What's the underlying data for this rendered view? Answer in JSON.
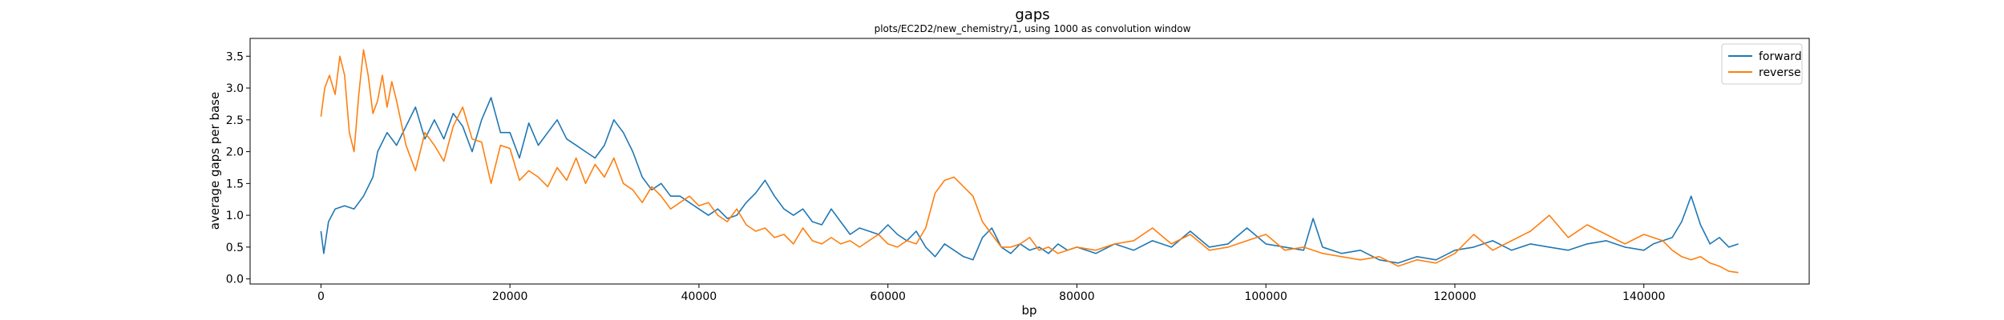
{
  "chart_data": {
    "type": "line",
    "title": "gaps",
    "subtitle": "plots/EC2D2/new_chemistry/1, using 1000 as convolution window",
    "xlabel": "bp",
    "ylabel": "average gaps per base",
    "xlim": [
      -7500,
      157500
    ],
    "ylim": [
      -0.08,
      3.78
    ],
    "x_ticks": [
      0,
      20000,
      40000,
      60000,
      80000,
      100000,
      120000,
      140000
    ],
    "x_tick_labels": [
      "0",
      "20000",
      "40000",
      "60000",
      "80000",
      "100000",
      "120000",
      "140000"
    ],
    "y_ticks": [
      0.0,
      0.5,
      1.0,
      1.5,
      2.0,
      2.5,
      3.0,
      3.5
    ],
    "y_tick_labels": [
      "0.0",
      "0.5",
      "1.0",
      "1.5",
      "2.0",
      "2.5",
      "3.0",
      "3.5"
    ],
    "grid": false,
    "legend_position": "top-right",
    "series": [
      {
        "name": "forward",
        "color": "#1f77b4",
        "points": [
          [
            0,
            0.75
          ],
          [
            300,
            0.4
          ],
          [
            800,
            0.9
          ],
          [
            1500,
            1.1
          ],
          [
            2500,
            1.15
          ],
          [
            3500,
            1.1
          ],
          [
            4500,
            1.3
          ],
          [
            5500,
            1.6
          ],
          [
            6000,
            2.0
          ],
          [
            7000,
            2.3
          ],
          [
            8000,
            2.1
          ],
          [
            9000,
            2.4
          ],
          [
            10000,
            2.7
          ],
          [
            11000,
            2.2
          ],
          [
            12000,
            2.5
          ],
          [
            13000,
            2.2
          ],
          [
            14000,
            2.6
          ],
          [
            15000,
            2.4
          ],
          [
            16000,
            2.0
          ],
          [
            17000,
            2.5
          ],
          [
            18000,
            2.85
          ],
          [
            19000,
            2.3
          ],
          [
            20000,
            2.3
          ],
          [
            21000,
            1.9
          ],
          [
            22000,
            2.45
          ],
          [
            23000,
            2.1
          ],
          [
            24000,
            2.3
          ],
          [
            25000,
            2.5
          ],
          [
            26000,
            2.2
          ],
          [
            27000,
            2.1
          ],
          [
            28000,
            2.0
          ],
          [
            29000,
            1.9
          ],
          [
            30000,
            2.1
          ],
          [
            31000,
            2.5
          ],
          [
            32000,
            2.3
          ],
          [
            33000,
            2.0
          ],
          [
            34000,
            1.6
          ],
          [
            35000,
            1.4
          ],
          [
            36000,
            1.5
          ],
          [
            37000,
            1.3
          ],
          [
            38000,
            1.3
          ],
          [
            39000,
            1.2
          ],
          [
            40000,
            1.1
          ],
          [
            41000,
            1.0
          ],
          [
            42000,
            1.1
          ],
          [
            43000,
            0.95
          ],
          [
            44000,
            1.0
          ],
          [
            45000,
            1.2
          ],
          [
            46000,
            1.35
          ],
          [
            47000,
            1.55
          ],
          [
            48000,
            1.3
          ],
          [
            49000,
            1.1
          ],
          [
            50000,
            1.0
          ],
          [
            51000,
            1.1
          ],
          [
            52000,
            0.9
          ],
          [
            53000,
            0.85
          ],
          [
            54000,
            1.1
          ],
          [
            55000,
            0.9
          ],
          [
            56000,
            0.7
          ],
          [
            57000,
            0.8
          ],
          [
            58000,
            0.75
          ],
          [
            59000,
            0.7
          ],
          [
            60000,
            0.85
          ],
          [
            61000,
            0.7
          ],
          [
            62000,
            0.6
          ],
          [
            63000,
            0.75
          ],
          [
            64000,
            0.5
          ],
          [
            65000,
            0.35
          ],
          [
            66000,
            0.55
          ],
          [
            67000,
            0.45
          ],
          [
            68000,
            0.35
          ],
          [
            69000,
            0.3
          ],
          [
            70000,
            0.65
          ],
          [
            71000,
            0.8
          ],
          [
            72000,
            0.5
          ],
          [
            73000,
            0.4
          ],
          [
            74000,
            0.55
          ],
          [
            75000,
            0.45
          ],
          [
            76000,
            0.5
          ],
          [
            77000,
            0.4
          ],
          [
            78000,
            0.55
          ],
          [
            79000,
            0.45
          ],
          [
            80000,
            0.5
          ],
          [
            82000,
            0.4
          ],
          [
            84000,
            0.55
          ],
          [
            86000,
            0.45
          ],
          [
            88000,
            0.6
          ],
          [
            90000,
            0.5
          ],
          [
            92000,
            0.75
          ],
          [
            94000,
            0.5
          ],
          [
            96000,
            0.55
          ],
          [
            98000,
            0.8
          ],
          [
            100000,
            0.55
          ],
          [
            102000,
            0.5
          ],
          [
            104000,
            0.45
          ],
          [
            105000,
            0.95
          ],
          [
            106000,
            0.5
          ],
          [
            108000,
            0.4
          ],
          [
            110000,
            0.45
          ],
          [
            112000,
            0.3
          ],
          [
            114000,
            0.25
          ],
          [
            116000,
            0.35
          ],
          [
            118000,
            0.3
          ],
          [
            120000,
            0.45
          ],
          [
            122000,
            0.5
          ],
          [
            124000,
            0.6
          ],
          [
            126000,
            0.45
          ],
          [
            128000,
            0.55
          ],
          [
            130000,
            0.5
          ],
          [
            132000,
            0.45
          ],
          [
            134000,
            0.55
          ],
          [
            136000,
            0.6
          ],
          [
            138000,
            0.5
          ],
          [
            140000,
            0.45
          ],
          [
            141000,
            0.55
          ],
          [
            142000,
            0.6
          ],
          [
            143000,
            0.65
          ],
          [
            144000,
            0.9
          ],
          [
            145000,
            1.3
          ],
          [
            146000,
            0.85
          ],
          [
            147000,
            0.55
          ],
          [
            148000,
            0.65
          ],
          [
            149000,
            0.5
          ],
          [
            150000,
            0.55
          ]
        ]
      },
      {
        "name": "reverse",
        "color": "#ff7f0e",
        "points": [
          [
            0,
            2.55
          ],
          [
            400,
            3.0
          ],
          [
            900,
            3.2
          ],
          [
            1500,
            2.9
          ],
          [
            2000,
            3.5
          ],
          [
            2500,
            3.2
          ],
          [
            3000,
            2.3
          ],
          [
            3500,
            2.0
          ],
          [
            4000,
            2.9
          ],
          [
            4500,
            3.6
          ],
          [
            5000,
            3.2
          ],
          [
            5500,
            2.6
          ],
          [
            6000,
            2.8
          ],
          [
            6500,
            3.2
          ],
          [
            7000,
            2.7
          ],
          [
            7500,
            3.1
          ],
          [
            8000,
            2.8
          ],
          [
            9000,
            2.1
          ],
          [
            10000,
            1.7
          ],
          [
            11000,
            2.3
          ],
          [
            12000,
            2.1
          ],
          [
            13000,
            1.85
          ],
          [
            14000,
            2.4
          ],
          [
            15000,
            2.7
          ],
          [
            15500,
            2.45
          ],
          [
            16000,
            2.2
          ],
          [
            17000,
            2.15
          ],
          [
            18000,
            1.5
          ],
          [
            19000,
            2.1
          ],
          [
            20000,
            2.05
          ],
          [
            21000,
            1.55
          ],
          [
            22000,
            1.7
          ],
          [
            23000,
            1.6
          ],
          [
            24000,
            1.45
          ],
          [
            25000,
            1.75
          ],
          [
            26000,
            1.55
          ],
          [
            27000,
            1.9
          ],
          [
            28000,
            1.5
          ],
          [
            29000,
            1.8
          ],
          [
            30000,
            1.6
          ],
          [
            31000,
            1.9
          ],
          [
            32000,
            1.5
          ],
          [
            33000,
            1.4
          ],
          [
            34000,
            1.2
          ],
          [
            35000,
            1.45
          ],
          [
            36000,
            1.3
          ],
          [
            37000,
            1.1
          ],
          [
            38000,
            1.2
          ],
          [
            39000,
            1.3
          ],
          [
            40000,
            1.15
          ],
          [
            41000,
            1.2
          ],
          [
            42000,
            1.0
          ],
          [
            43000,
            0.9
          ],
          [
            44000,
            1.1
          ],
          [
            45000,
            0.85
          ],
          [
            46000,
            0.75
          ],
          [
            47000,
            0.8
          ],
          [
            48000,
            0.65
          ],
          [
            49000,
            0.7
          ],
          [
            50000,
            0.55
          ],
          [
            51000,
            0.8
          ],
          [
            52000,
            0.6
          ],
          [
            53000,
            0.55
          ],
          [
            54000,
            0.65
          ],
          [
            55000,
            0.55
          ],
          [
            56000,
            0.6
          ],
          [
            57000,
            0.5
          ],
          [
            58000,
            0.6
          ],
          [
            59000,
            0.7
          ],
          [
            60000,
            0.55
          ],
          [
            61000,
            0.5
          ],
          [
            62000,
            0.6
          ],
          [
            63000,
            0.55
          ],
          [
            64000,
            0.8
          ],
          [
            65000,
            1.35
          ],
          [
            66000,
            1.55
          ],
          [
            67000,
            1.6
          ],
          [
            68000,
            1.45
          ],
          [
            69000,
            1.3
          ],
          [
            70000,
            0.9
          ],
          [
            71000,
            0.7
          ],
          [
            72000,
            0.5
          ],
          [
            73000,
            0.5
          ],
          [
            74000,
            0.55
          ],
          [
            75000,
            0.65
          ],
          [
            76000,
            0.45
          ],
          [
            77000,
            0.5
          ],
          [
            78000,
            0.4
          ],
          [
            80000,
            0.5
          ],
          [
            82000,
            0.45
          ],
          [
            84000,
            0.55
          ],
          [
            86000,
            0.6
          ],
          [
            88000,
            0.8
          ],
          [
            90000,
            0.55
          ],
          [
            92000,
            0.7
          ],
          [
            94000,
            0.45
          ],
          [
            96000,
            0.5
          ],
          [
            98000,
            0.6
          ],
          [
            100000,
            0.7
          ],
          [
            102000,
            0.45
          ],
          [
            104000,
            0.5
          ],
          [
            106000,
            0.4
          ],
          [
            108000,
            0.35
          ],
          [
            110000,
            0.3
          ],
          [
            112000,
            0.35
          ],
          [
            114000,
            0.2
          ],
          [
            116000,
            0.3
          ],
          [
            118000,
            0.25
          ],
          [
            120000,
            0.4
          ],
          [
            122000,
            0.7
          ],
          [
            124000,
            0.45
          ],
          [
            126000,
            0.6
          ],
          [
            128000,
            0.75
          ],
          [
            130000,
            1.0
          ],
          [
            132000,
            0.65
          ],
          [
            134000,
            0.85
          ],
          [
            136000,
            0.7
          ],
          [
            138000,
            0.55
          ],
          [
            140000,
            0.7
          ],
          [
            142000,
            0.6
          ],
          [
            143000,
            0.45
          ],
          [
            144000,
            0.35
          ],
          [
            145000,
            0.3
          ],
          [
            146000,
            0.35
          ],
          [
            147000,
            0.25
          ],
          [
            148000,
            0.2
          ],
          [
            149000,
            0.12
          ],
          [
            150000,
            0.1
          ]
        ]
      }
    ]
  }
}
